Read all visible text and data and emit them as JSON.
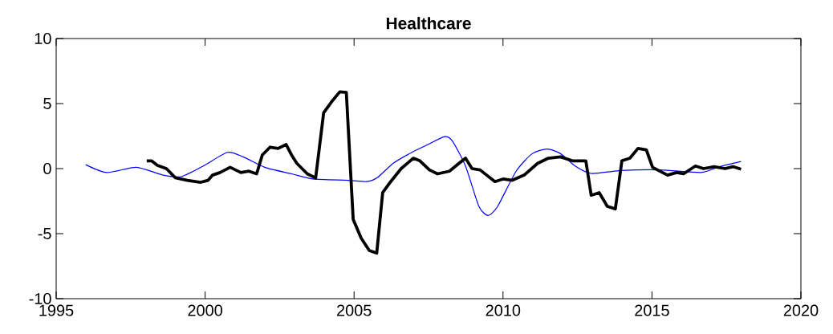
{
  "chart_data": {
    "type": "line",
    "title": "Healthcare",
    "xlim": [
      1995,
      2020
    ],
    "xticks": [
      1995,
      2000,
      2005,
      2010,
      2015,
      2020
    ],
    "ylim": [
      -10,
      10
    ],
    "yticks": [
      -10,
      -5,
      0,
      5,
      10
    ],
    "marker": "none",
    "line_style": "solid",
    "series": [
      {
        "color": "#0000ff",
        "x": [
          1995.99,
          1996.7,
          1997.69,
          1998.59,
          1999.22,
          1999.94,
          2000.75,
          2001.28,
          2002.0,
          2002.9,
          2003.62,
          2004.79,
          2005.42,
          2005.78,
          2006.31,
          2006.94,
          2007.48,
          2008.02,
          2008.29,
          2008.74,
          2009.19,
          2009.5,
          2009.82,
          2010.44,
          2010.98,
          2011.48,
          2011.93,
          2012.42,
          2012.96,
          2013.95,
          2015.3,
          2016.64,
          2017.27,
          2017.99
        ],
        "values": [
          0.3,
          -0.3,
          0.1,
          -0.5,
          -0.6,
          0.2,
          1.25,
          0.9,
          0.1,
          -0.4,
          -0.8,
          -0.9,
          -1.0,
          -0.7,
          0.4,
          1.25,
          1.85,
          2.45,
          2.15,
          0.2,
          -2.9,
          -3.6,
          -2.9,
          -0.2,
          1.15,
          1.5,
          1.15,
          0.2,
          -0.37,
          -0.15,
          -0.1,
          -0.3,
          0.15,
          0.55
        ]
      },
      {
        "color": "#000000",
        "x": [
          1998.04,
          1998.2,
          1998.4,
          1998.7,
          1999.0,
          1999.4,
          1999.85,
          2000.1,
          2000.25,
          2000.5,
          2000.84,
          2001.2,
          2001.47,
          2001.73,
          2001.92,
          2002.18,
          2002.45,
          2002.72,
          2002.9,
          2003.08,
          2003.43,
          2003.71,
          2003.98,
          2004.25,
          2004.52,
          2004.74,
          2004.97,
          2005.24,
          2005.51,
          2005.76,
          2005.96,
          2006.23,
          2006.58,
          2006.99,
          2007.21,
          2007.53,
          2007.8,
          2008.2,
          2008.52,
          2008.74,
          2008.96,
          2009.23,
          2009.73,
          2010.0,
          2010.31,
          2010.71,
          2011.16,
          2011.52,
          2011.93,
          2012.33,
          2012.78,
          2012.96,
          2013.23,
          2013.5,
          2013.77,
          2013.99,
          2014.26,
          2014.53,
          2014.81,
          2015.02,
          2015.52,
          2015.83,
          2016.06,
          2016.46,
          2016.73,
          2017.09,
          2017.45,
          2017.72,
          2017.99
        ],
        "values": [
          0.6,
          0.6,
          0.25,
          0,
          -0.7,
          -0.9,
          -1.05,
          -0.9,
          -0.5,
          -0.3,
          0.1,
          -0.3,
          -0.2,
          -0.4,
          1.05,
          1.65,
          1.55,
          1.85,
          1.05,
          0.4,
          -0.4,
          -0.72,
          4.3,
          5.15,
          5.9,
          5.85,
          -3.9,
          -5.35,
          -6.3,
          -6.5,
          -1.85,
          -1.0,
          0,
          0.8,
          0.6,
          -0.1,
          -0.4,
          -0.2,
          0.4,
          0.8,
          0,
          -0.1,
          -1.0,
          -0.8,
          -0.9,
          -0.5,
          0.4,
          0.8,
          0.9,
          0.6,
          0.6,
          -2.05,
          -1.85,
          -2.9,
          -3.1,
          0.6,
          0.8,
          1.55,
          1.45,
          0.1,
          -0.5,
          -0.3,
          -0.4,
          0.2,
          0,
          0.15,
          0,
          0.15,
          -0.05
        ]
      }
    ]
  }
}
